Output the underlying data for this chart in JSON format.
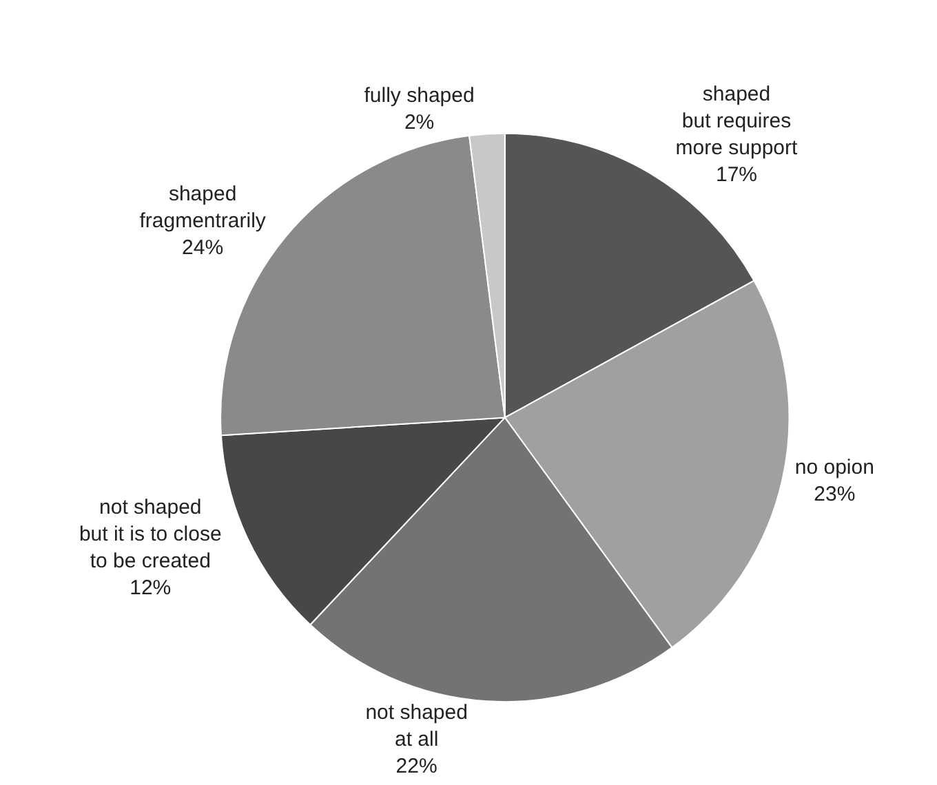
{
  "chart_data": {
    "type": "pie",
    "categories": [
      "shaped\nbut requires\nmore support",
      "no opion",
      "not shaped\nat all",
      "not shaped\nbut it is to close\nto be created",
      "shaped\nfragmentrarily",
      "fully shaped"
    ],
    "values": [
      17,
      23,
      22,
      12,
      24,
      2
    ],
    "value_labels": [
      "17%",
      "23%",
      "22%",
      "12%",
      "24%",
      "2%"
    ],
    "colors": [
      "#555555",
      "#a0a0a0",
      "#737373",
      "#474747",
      "#8a8a8a",
      "#c8c8c8"
    ],
    "legend": false
  }
}
